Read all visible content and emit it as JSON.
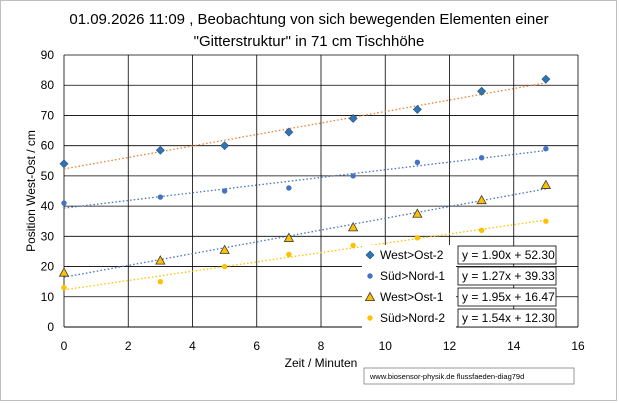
{
  "chart_data": {
    "type": "scatter",
    "title_lines": [
      "01.09.2026  11:09 , Beobachtung von sich bewegenden Elementen einer",
      "\"Gitterstruktur\"  in 71 cm Tischhöhe"
    ],
    "xlabel": "Zeit / Minuten",
    "ylabel": "Position West-Ost / cm",
    "xlim": [
      0,
      16
    ],
    "ylim": [
      0,
      90
    ],
    "xticks": [
      "0",
      "2",
      "4",
      "6",
      "8",
      "10",
      "12",
      "14",
      "16"
    ],
    "yticks": [
      "0",
      "10",
      "20",
      "30",
      "40",
      "50",
      "60",
      "70",
      "80",
      "90"
    ],
    "grid": true,
    "legend_position": "lower-right",
    "series": [
      {
        "name": "West>Ost-2",
        "marker": "diamond",
        "color": "#2e75b6",
        "trend_color": "#ed7d31",
        "x": [
          0,
          3,
          5,
          7,
          9,
          11,
          13,
          15
        ],
        "y": [
          54,
          58.5,
          60,
          64.5,
          69,
          72,
          78,
          82
        ],
        "trendline": {
          "slope": 1.9,
          "intercept": 52.3,
          "equation": "y = 1.90x + 52.30"
        }
      },
      {
        "name": "Süd>Nord-1",
        "marker": "circle",
        "color": "#4472c4",
        "trend_color": "#4472c4",
        "x": [
          0,
          3,
          5,
          7,
          9,
          11,
          13,
          15
        ],
        "y": [
          41,
          43,
          45,
          46,
          50,
          54.5,
          56,
          59
        ],
        "trendline": {
          "slope": 1.27,
          "intercept": 39.33,
          "equation": "y = 1.27x + 39.33"
        }
      },
      {
        "name": "West>Ost-1",
        "marker": "triangle",
        "color": "#ffc000",
        "trend_color": "#4472c4",
        "x": [
          0,
          3,
          5,
          7,
          9,
          11,
          13,
          15
        ],
        "y": [
          18,
          22,
          25.5,
          29.5,
          33,
          37.5,
          42,
          47
        ],
        "trendline": {
          "slope": 1.95,
          "intercept": 16.47,
          "equation": "y = 1.95x + 16.47"
        }
      },
      {
        "name": "Süd>Nord-2",
        "marker": "circle",
        "color": "#ffc000",
        "trend_color": "#ffc000",
        "x": [
          0,
          3,
          5,
          7,
          9,
          11,
          13,
          15
        ],
        "y": [
          13,
          15,
          20,
          24,
          27,
          29.5,
          32,
          35
        ],
        "trendline": {
          "slope": 1.54,
          "intercept": 12.3,
          "equation": "y = 1.54x + 12.30"
        }
      }
    ],
    "credit": "www.biosensor-physik.de  flussfaeden-diag79d"
  }
}
